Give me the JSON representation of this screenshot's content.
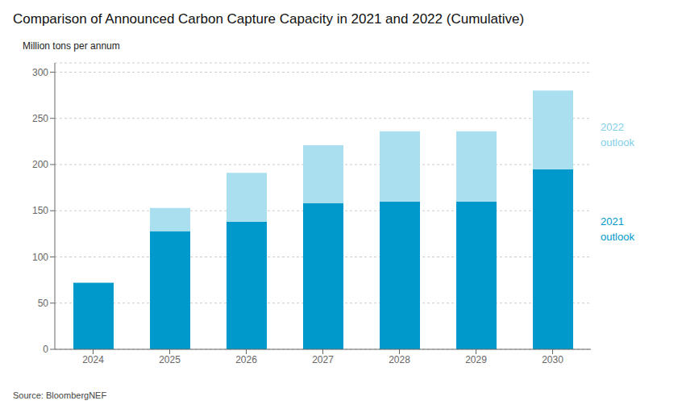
{
  "chart_data": {
    "type": "bar",
    "stacked": true,
    "title": "Comparison of Announced Carbon Capture Capacity in 2021 and 2022 (Cumulative)",
    "y_label": "Million tons per annum",
    "source": "Source: BloombergNEF",
    "categories": [
      "2024",
      "2025",
      "2026",
      "2027",
      "2028",
      "2029",
      "2030"
    ],
    "series": [
      {
        "color": "#0099cc",
        "values": [
          72,
          128,
          138,
          158,
          160,
          160,
          195
        ]
      },
      {
        "color": "#aadff0",
        "values": [
          0,
          25,
          53,
          63,
          76,
          76,
          85
        ]
      }
    ],
    "annotations": [
      {
        "text": "2022\noutlook",
        "color": "#7fd0e8"
      },
      {
        "text": "2021\noutlook",
        "color": "#0099cc"
      }
    ],
    "ylim": [
      0,
      310
    ],
    "yticks": [
      0,
      50,
      100,
      150,
      200,
      250,
      300
    ],
    "grid": true
  }
}
